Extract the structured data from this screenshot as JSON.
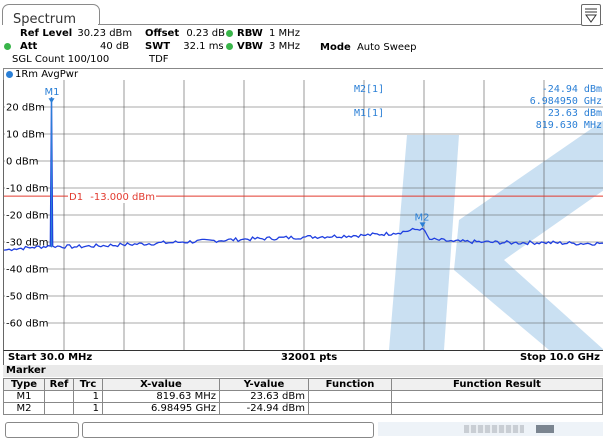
{
  "tab": {
    "title": "Spectrum"
  },
  "header": {
    "ref_level_label": "Ref Level",
    "ref_level_value": "30.23 dBm",
    "offset_label": "Offset",
    "offset_value": "0.23 dB",
    "rbw_label": "RBW",
    "rbw_value": "1 MHz",
    "att_label": "Att",
    "att_value": "40 dB",
    "swt_label": "SWT",
    "swt_value": "32.1 ms",
    "vbw_label": "VBW",
    "vbw_value": "3 MHz",
    "mode_label": "Mode",
    "mode_value": "Auto Sweep",
    "sgl_count": "SGL Count 100/100",
    "tdf": "TDF"
  },
  "trace_label": "1Rm AvgPwr",
  "marker_readout": {
    "m2_label": "M2[1]",
    "m2_level": "-24.94 dBm",
    "m2_freq": "6.984950 GHz",
    "m1_label": "M1[1]",
    "m1_level": "23.63 dBm",
    "m1_freq": "819.630 MHz"
  },
  "y_ticks": [
    "20 dBm",
    "10 dBm",
    "0 dBm",
    "-10 dBm",
    "-20 dBm",
    "-30 dBm",
    "-40 dBm",
    "-50 dBm",
    "-60 dBm"
  ],
  "display_line": {
    "label": "D1",
    "value": "-13.000 dBm"
  },
  "marker_tags": {
    "m1": "M1",
    "m2": "M2"
  },
  "status": {
    "start": "Start 30.0 MHz",
    "points": "32001 pts",
    "stop": "Stop 10.0 GHz"
  },
  "marker_table": {
    "title": "Marker",
    "headers": [
      "Type",
      "Ref",
      "Trc",
      "X-value",
      "Y-value",
      "Function",
      "Function Result"
    ],
    "rows": [
      [
        "M1",
        "",
        "1",
        "819.63 MHz",
        "23.63 dBm",
        "",
        ""
      ],
      [
        "M2",
        "",
        "1",
        "6.98495 GHz",
        "-24.94 dBm",
        "",
        ""
      ]
    ]
  },
  "colors": {
    "trace": "#1f3fe0",
    "marker": "#2a7fd6",
    "display_line": "#e23a2f",
    "watermark": "#9ec6e8",
    "status_dot": "#39b54a"
  },
  "chart_data": {
    "type": "line",
    "xlabel": "",
    "ylabel": "",
    "x_range_ghz": [
      0.03,
      10.0
    ],
    "ylim": [
      -70,
      30
    ],
    "y_ticks": [
      20,
      10,
      0,
      -10,
      -20,
      -30,
      -40,
      -50,
      -60
    ],
    "series": [
      {
        "x": [
          0.03,
          0.2,
          0.5,
          0.8,
          0.82,
          0.84,
          1.2,
          2.0,
          3.0,
          4.0,
          5.0,
          6.0,
          6.5,
          6.98,
          7.1,
          7.5,
          8.0,
          8.5,
          9.0,
          9.5,
          10.0
        ],
        "values": [
          -33.0,
          -32.5,
          -32.0,
          -31.5,
          23.63,
          -31.5,
          -31.8,
          -31.0,
          -30.0,
          -29.0,
          -28.2,
          -27.5,
          -26.8,
          -24.94,
          -29.0,
          -29.8,
          -30.0,
          -30.3,
          -30.2,
          -30.5,
          -30.5
        ]
      }
    ],
    "markers": [
      {
        "name": "M1",
        "x": 0.81963,
        "y": 23.63
      },
      {
        "name": "M2",
        "x": 6.98495,
        "y": -24.94
      }
    ],
    "display_line_y": -13.0
  }
}
